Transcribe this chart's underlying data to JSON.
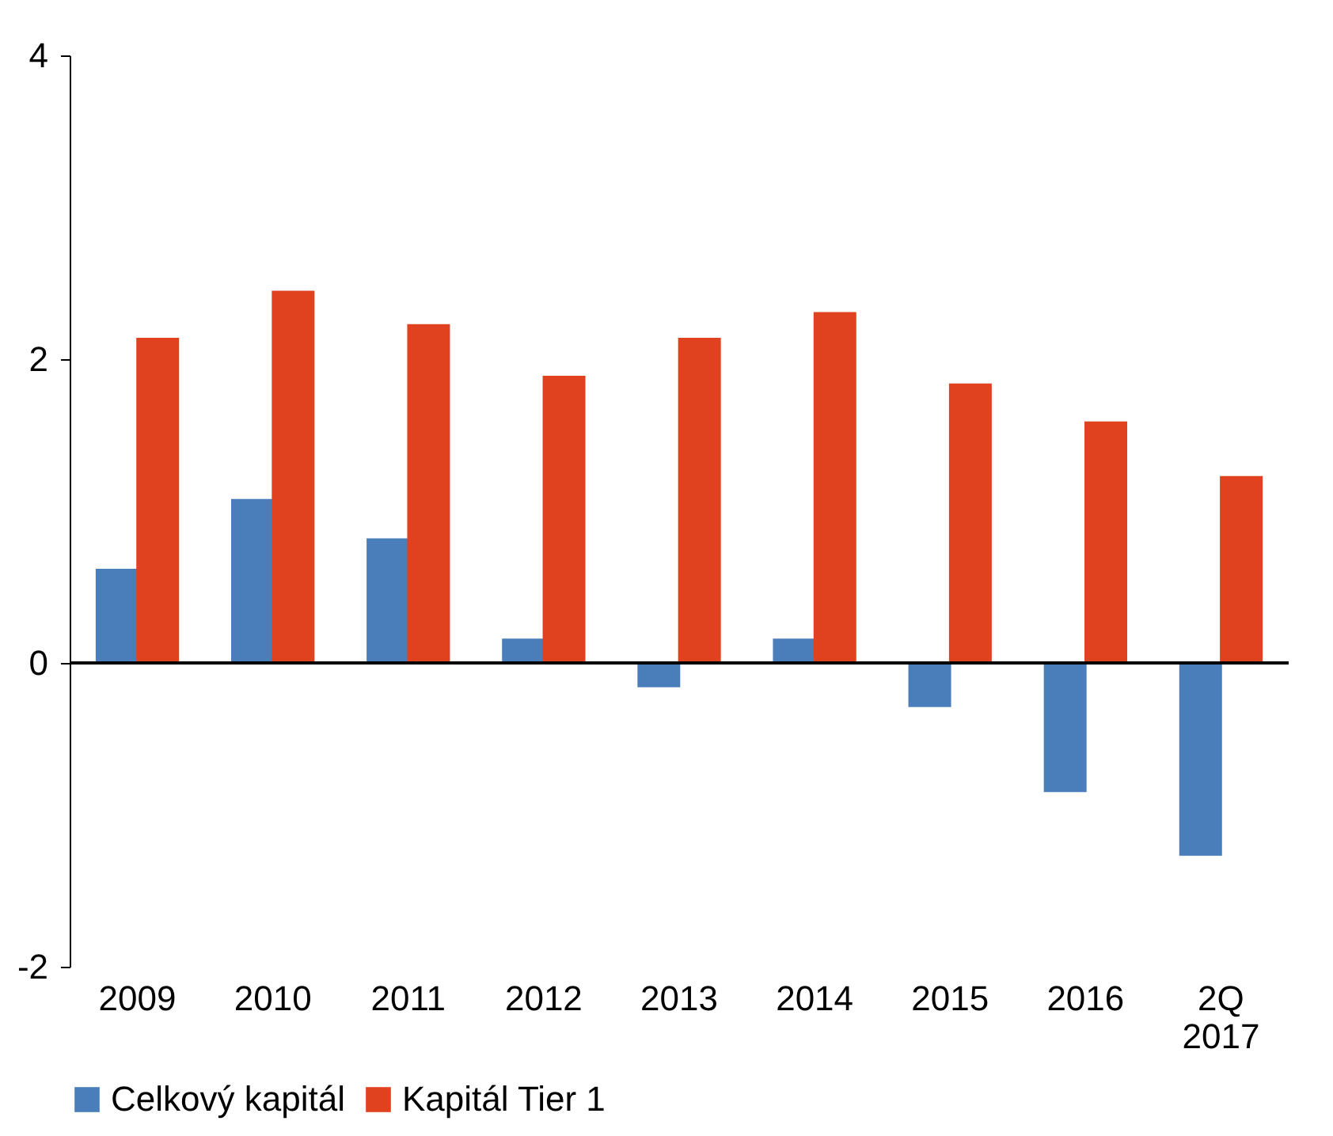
{
  "chart_data": {
    "type": "bar",
    "categories": [
      "2009",
      "2010",
      "2011",
      "2012",
      "2013",
      "2014",
      "2015",
      "2016",
      "2Q 2017"
    ],
    "series": [
      {
        "name": "Celkový kapitál",
        "color": "#4a7ebb",
        "values": [
          0.62,
          1.08,
          0.82,
          0.16,
          -0.16,
          0.16,
          -0.29,
          -0.85,
          -1.27
        ]
      },
      {
        "name": "Kapitál Tier 1",
        "color": "#e0421f",
        "values": [
          2.14,
          2.45,
          2.23,
          1.89,
          2.14,
          2.31,
          1.84,
          1.59,
          1.23
        ]
      }
    ],
    "ylim": [
      -2,
      4
    ],
    "yticks": [
      -2,
      0,
      2,
      4
    ],
    "legend": "bottom"
  }
}
